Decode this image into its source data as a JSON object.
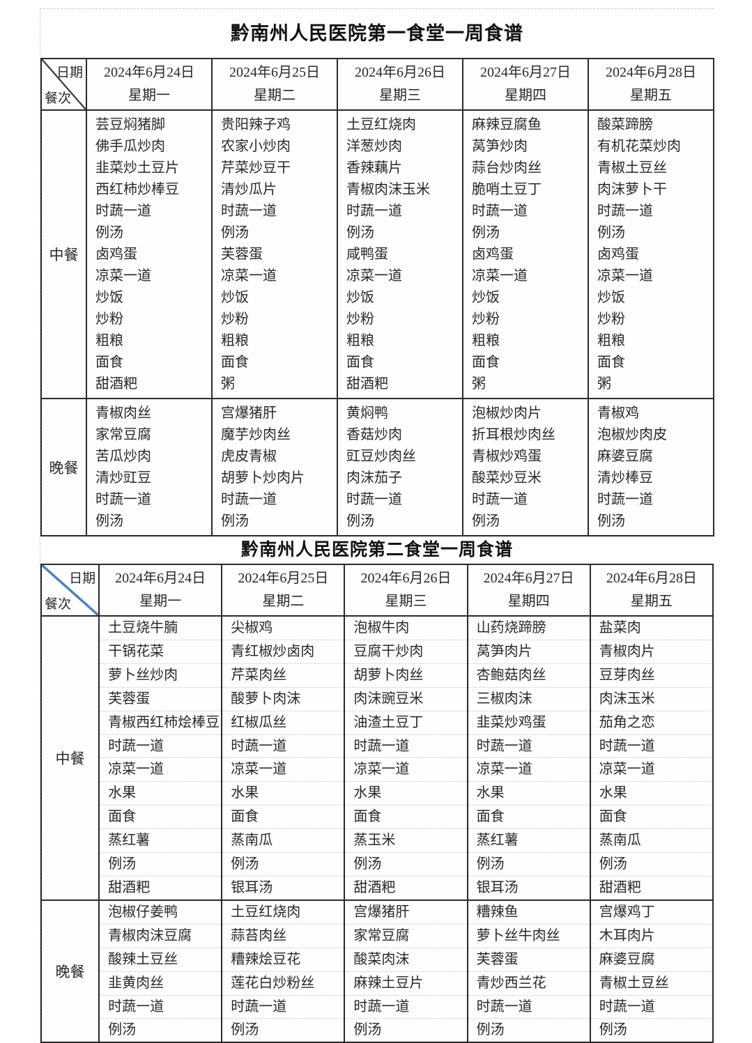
{
  "document": {
    "kind": "hospital-canteen-weekly-menu",
    "text_color": "#282828",
    "border_color": "#2a2a2a"
  },
  "tables": [
    {
      "title": "黔南州人民医院第一食堂一周食谱",
      "corner": {
        "top_label": "日期",
        "bottom_label": "餐次"
      },
      "diagonal_color": "#3a3a3a",
      "dish_separator": "none",
      "columns": [
        {
          "date": "2024年6月24日",
          "weekday": "星期一"
        },
        {
          "date": "2024年6月25日",
          "weekday": "星期二"
        },
        {
          "date": "2024年6月26日",
          "weekday": "星期三"
        },
        {
          "date": "2024年6月27日",
          "weekday": "星期四"
        },
        {
          "date": "2024年6月28日",
          "weekday": "星期五"
        }
      ],
      "rows": [
        {
          "label": "中餐",
          "cells": [
            [
              "芸豆焖猪脚",
              "佛手瓜炒肉",
              "韭菜炒土豆片",
              "西红柿炒棒豆",
              "时蔬一道",
              "例汤",
              "卤鸡蛋",
              "凉菜一道",
              "炒饭",
              "炒粉",
              "粗粮",
              "面食",
              "甜酒粑"
            ],
            [
              "贵阳辣子鸡",
              "农家小炒肉",
              "芹菜炒豆干",
              "清炒瓜片",
              "时蔬一道",
              "例汤",
              "芙蓉蛋",
              "凉菜一道",
              "炒饭",
              "炒粉",
              "粗粮",
              "面食",
              "粥"
            ],
            [
              "土豆红烧肉",
              "洋葱炒肉",
              "香辣藕片",
              "青椒肉沫玉米",
              "时蔬一道",
              "例汤",
              "咸鸭蛋",
              "凉菜一道",
              "炒饭",
              "炒粉",
              "粗粮",
              "面食",
              "甜酒粑"
            ],
            [
              "麻辣豆腐鱼",
              "莴笋炒肉",
              "蒜台炒肉丝",
              "脆哨土豆丁",
              "时蔬一道",
              "例汤",
              "卤鸡蛋",
              "凉菜一道",
              "炒饭",
              "炒粉",
              "粗粮",
              "面食",
              "粥"
            ],
            [
              "酸菜蹄膀",
              "有机花菜炒肉",
              "青椒土豆丝",
              "肉沫萝卜干",
              "时蔬一道",
              "例汤",
              "卤鸡蛋",
              "凉菜一道",
              "炒饭",
              "炒粉",
              "粗粮",
              "面食",
              "粥"
            ]
          ]
        },
        {
          "label": "晚餐",
          "cells": [
            [
              "青椒肉丝",
              "家常豆腐",
              "苦瓜炒肉",
              "清炒豇豆",
              "时蔬一道",
              "例汤"
            ],
            [
              "宫爆猪肝",
              "魔芋炒肉丝",
              "虎皮青椒",
              "胡萝卜炒肉片",
              "时蔬一道",
              "例汤"
            ],
            [
              "黄焖鸭",
              "香菇炒肉",
              "豇豆炒肉丝",
              "肉沫茄子",
              "时蔬一道",
              "例汤"
            ],
            [
              "泡椒炒肉片",
              "折耳根炒肉丝",
              "青椒炒鸡蛋",
              "酸菜炒豆米",
              "时蔬一道",
              "例汤"
            ],
            [
              "青椒鸡",
              "泡椒炒肉皮",
              "麻婆豆腐",
              "清炒棒豆",
              "时蔬一道",
              "例汤"
            ]
          ]
        }
      ]
    },
    {
      "title": "黔南州人民医院第二食堂一周食谱",
      "corner": {
        "top_label": "日期",
        "bottom_label": "餐次"
      },
      "diagonal_color": "#4f81bd",
      "dish_separator": "dotted",
      "columns": [
        {
          "date": "2024年6月24日",
          "weekday": "星期一"
        },
        {
          "date": "2024年6月25日",
          "weekday": "星期二"
        },
        {
          "date": "2024年6月26日",
          "weekday": "星期三"
        },
        {
          "date": "2024年6月27日",
          "weekday": "星期四"
        },
        {
          "date": "2024年6月28日",
          "weekday": "星期五"
        }
      ],
      "rows": [
        {
          "label": "中餐",
          "cells": [
            [
              "土豆烧牛腩",
              "干锅花菜",
              "萝卜丝炒肉",
              "芙蓉蛋",
              "青椒西红柿烩棒豆",
              "时蔬一道",
              "凉菜一道",
              "水果",
              "面食",
              "蒸红薯",
              "例汤",
              "甜酒粑"
            ],
            [
              "尖椒鸡",
              "青红椒炒卤肉",
              "芹菜肉丝",
              "酸萝卜肉沫",
              "红椒瓜丝",
              "时蔬一道",
              "凉菜一道",
              "水果",
              "面食",
              "蒸南瓜",
              "例汤",
              "银耳汤"
            ],
            [
              "泡椒牛肉",
              "豆腐干炒肉",
              "胡萝卜肉丝",
              "肉沫豌豆米",
              "油渣土豆丁",
              "时蔬一道",
              "凉菜一道",
              "水果",
              "面食",
              "蒸玉米",
              "例汤",
              "甜酒粑"
            ],
            [
              "山药烧蹄膀",
              "莴笋肉片",
              "杏鲍菇肉丝",
              "三椒肉沫",
              "韭菜炒鸡蛋",
              "时蔬一道",
              "凉菜一道",
              "水果",
              "面食",
              "蒸红薯",
              "例汤",
              "银耳汤"
            ],
            [
              "盐菜肉",
              "青椒肉片",
              "豆芽肉丝",
              "肉沫玉米",
              "茄角之恋",
              "时蔬一道",
              "凉菜一道",
              "水果",
              "面食",
              "蒸南瓜",
              "例汤",
              "甜酒粑"
            ]
          ]
        },
        {
          "label": "晚餐",
          "cells": [
            [
              "泡椒仔姜鸭",
              "青椒肉沫豆腐",
              "酸辣土豆丝",
              "韭黄肉丝",
              "时蔬一道",
              "例汤"
            ],
            [
              "土豆红烧肉",
              "蒜苔肉丝",
              "糟辣烩豆花",
              "莲花白炒粉丝",
              "时蔬一道",
              "例汤"
            ],
            [
              "宫爆猪肝",
              "家常豆腐",
              "酸菜肉沫",
              "麻辣土豆片",
              "时蔬一道",
              "例汤"
            ],
            [
              "糟辣鱼",
              "萝卜丝牛肉丝",
              "芙蓉蛋",
              "青炒西兰花",
              "时蔬一道",
              "例汤"
            ],
            [
              "宫爆鸡丁",
              "木耳肉片",
              "麻婆豆腐",
              "青椒土豆丝",
              "时蔬一道",
              "例汤"
            ]
          ]
        }
      ]
    }
  ]
}
